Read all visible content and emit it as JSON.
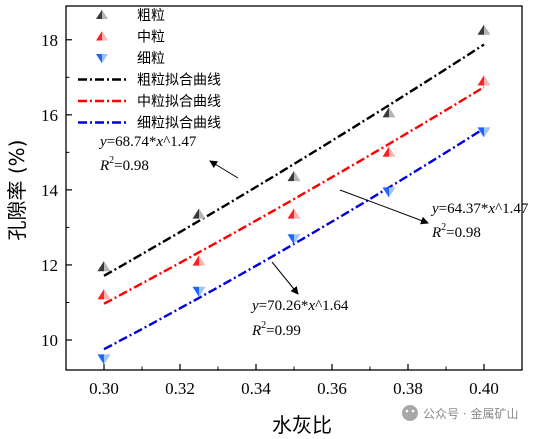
{
  "chart_data": {
    "type": "scatter",
    "xlabel": "水灰比",
    "ylabel": "孔隙率 (%)",
    "xlim": [
      0.29,
      0.41
    ],
    "ylim": [
      9.2,
      18.9
    ],
    "xticks": [
      "0.30",
      "0.32",
      "0.34",
      "0.36",
      "0.38",
      "0.40"
    ],
    "yticks": [
      "10",
      "12",
      "14",
      "16",
      "18"
    ],
    "grid": false,
    "legend_position": "top-left",
    "series": [
      {
        "name": "粗粒",
        "marker": "triangle-up",
        "color": "#555555",
        "x": [
          0.3,
          0.325,
          0.35,
          0.375,
          0.4
        ],
        "y": [
          11.95,
          13.35,
          14.35,
          16.05,
          18.25
        ]
      },
      {
        "name": "中粒",
        "marker": "triangle-up",
        "color": "#ff3b3b",
        "x": [
          0.3,
          0.325,
          0.35,
          0.375,
          0.4
        ],
        "y": [
          11.2,
          12.1,
          13.35,
          15.0,
          16.9
        ]
      },
      {
        "name": "细粒",
        "marker": "triangle-down",
        "color": "#3b7bff",
        "x": [
          0.3,
          0.325,
          0.35,
          0.375,
          0.4
        ],
        "y": [
          9.5,
          11.3,
          12.7,
          13.95,
          15.55
        ]
      }
    ],
    "fits": [
      {
        "name": "粗粒拟合曲线",
        "color": "#000000",
        "coef": 68.74,
        "exp": 1.47,
        "r2": "0.98"
      },
      {
        "name": "中粒拟合曲线",
        "color": "#ff0000",
        "coef": 64.37,
        "exp": 1.47,
        "r2": "0.98"
      },
      {
        "name": "细粒拟合曲线",
        "color": "#0000dd",
        "coef": 70.26,
        "exp": 1.64,
        "r2": "0.99"
      }
    ],
    "annotations": [
      {
        "eq_prefix": "y",
        "eq_body": "=68.74*",
        "eq_var": "x",
        "eq_suffix": "^1.47",
        "r2_label": "R",
        "r2_sup": "2",
        "r2_value": "=0.98"
      },
      {
        "eq_prefix": "y",
        "eq_body": "=64.37*",
        "eq_var": "x",
        "eq_suffix": "^1.47",
        "r2_label": "R",
        "r2_sup": "2",
        "r2_value": "=0.98"
      },
      {
        "eq_prefix": "y",
        "eq_body": "=70.26*",
        "eq_var": "x",
        "eq_suffix": "^1.64",
        "r2_label": "R",
        "r2_sup": "2",
        "r2_value": "=0.99"
      }
    ]
  },
  "watermark": "公众号 · 金属矿山"
}
